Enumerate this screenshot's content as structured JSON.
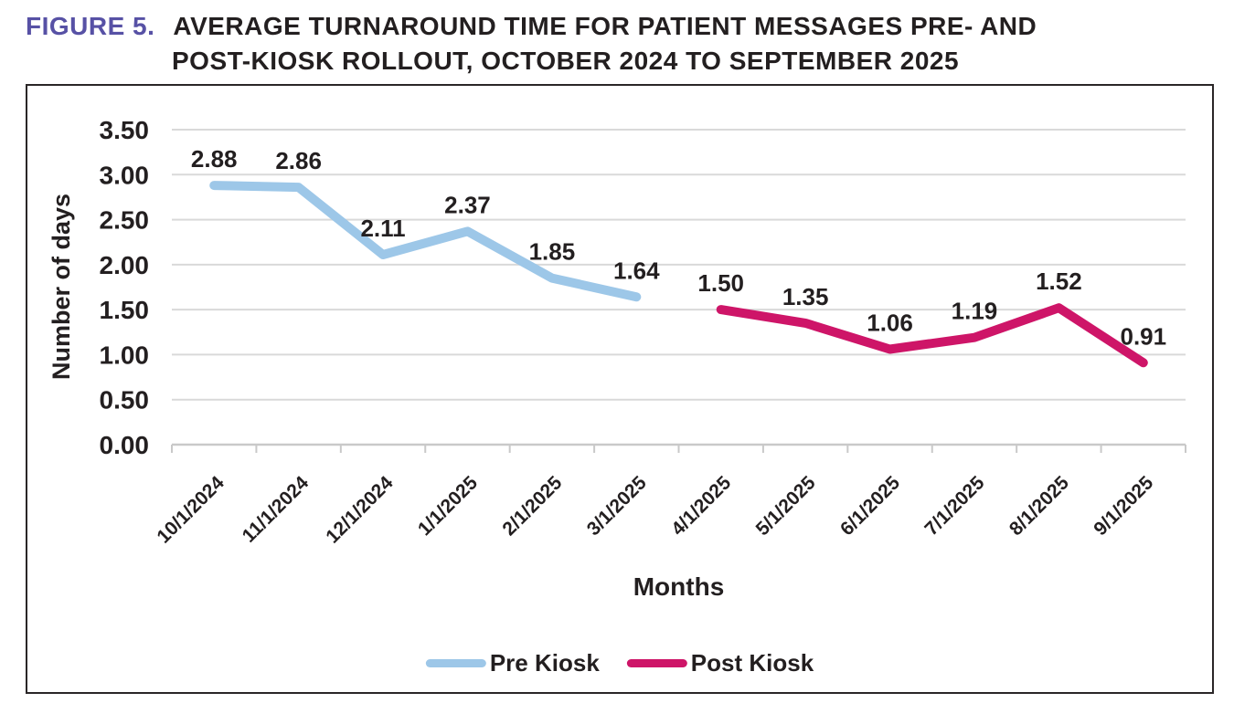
{
  "figure": {
    "label": "FIGURE 5.",
    "label_color": "#5751a5",
    "title_color": "#231f20",
    "title_line1": "AVERAGE TURNAROUND TIME FOR PATIENT MESSAGES PRE- AND",
    "title_line2": "POST-KIOSK ROLLOUT, OCTOBER 2024 TO SEPTEMBER 2025"
  },
  "chart_data": {
    "type": "line",
    "title": "Average turnaround time for patient messages pre- and post-kiosk rollout",
    "categories": [
      "10/1/2024",
      "11/1/2024",
      "12/1/2024",
      "1/1/2025",
      "2/1/2025",
      "3/1/2025",
      "4/1/2025",
      "5/1/2025",
      "6/1/2025",
      "7/1/2025",
      "8/1/2025",
      "9/1/2025"
    ],
    "series": [
      {
        "name": "Pre Kiosk",
        "color": "#9dc7e8",
        "values": [
          2.88,
          2.86,
          2.11,
          2.37,
          1.85,
          1.64,
          null,
          null,
          null,
          null,
          null,
          null
        ]
      },
      {
        "name": "Post Kiosk",
        "color": "#ce1568",
        "values": [
          null,
          null,
          null,
          null,
          null,
          null,
          1.5,
          1.35,
          1.06,
          1.19,
          1.52,
          0.91
        ]
      }
    ],
    "xlabel": "Months",
    "ylabel": "Number of days",
    "ylim": [
      0,
      3.5
    ],
    "ytick_step": 0.5,
    "ytick_labels": [
      "0.00",
      "0.50",
      "1.00",
      "1.50",
      "2.00",
      "2.50",
      "3.00",
      "3.50"
    ],
    "grid": true,
    "gridline_color": "#d9d9d9",
    "axis_color": "#c9c9c9",
    "text_color": "#231f20",
    "data_labels": true,
    "legend_position": "bottom"
  }
}
